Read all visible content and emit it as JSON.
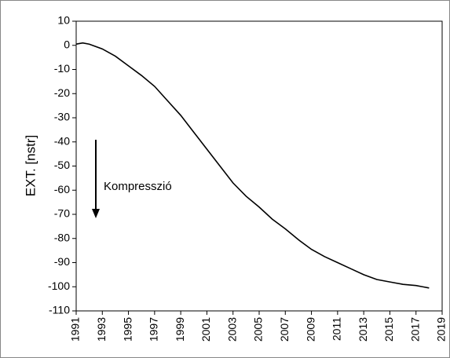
{
  "chart_data": {
    "type": "line",
    "ylabel": "EXT. [nstr]",
    "annotation": "Kompresszió",
    "x": [
      1991,
      1991.5,
      1992,
      1993,
      1994,
      1995,
      1996,
      1997,
      1998,
      1999,
      2000,
      2001,
      2002,
      2003,
      2004,
      2005,
      2006,
      2007,
      2008,
      2009,
      2010,
      2011,
      2012,
      2013,
      2014,
      2015,
      2016,
      2017,
      2017.5,
      2018
    ],
    "series": [
      {
        "name": "EXT",
        "color": "#000000",
        "values": [
          0.5,
          1,
          0.5,
          -1.5,
          -4.5,
          -8.5,
          -12.5,
          -17,
          -23,
          -29,
          -36,
          -43,
          -50,
          -57,
          -62.5,
          -67,
          -72,
          -76,
          -80.5,
          -84.5,
          -87.5,
          -90,
          -92.5,
          -95,
          -97,
          -98,
          -99,
          -99.5,
          -100,
          -100.5
        ]
      }
    ],
    "xlim": [
      1991,
      2019
    ],
    "xticks": [
      1991,
      1993,
      1995,
      1997,
      1999,
      2001,
      2003,
      2005,
      2007,
      2009,
      2011,
      2013,
      2015,
      2017,
      2019
    ],
    "ylim": [
      -110,
      10
    ],
    "yticks": [
      10,
      0,
      -10,
      -20,
      -30,
      -40,
      -50,
      -60,
      -70,
      -80,
      -90,
      -100,
      -110
    ]
  }
}
